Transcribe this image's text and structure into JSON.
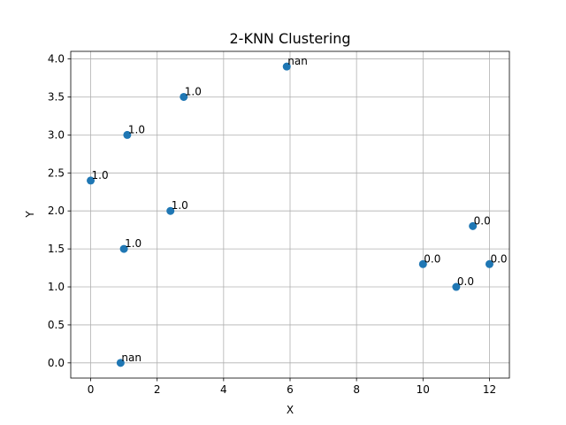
{
  "chart_data": {
    "type": "scatter",
    "title": "2-KNN Clustering",
    "xlabel": "X",
    "ylabel": "Y",
    "xlim": [
      -0.6,
      12.6
    ],
    "ylim": [
      -0.2,
      4.1
    ],
    "xticks": [
      0,
      2,
      4,
      6,
      8,
      10,
      12
    ],
    "xtick_labels": [
      "0",
      "2",
      "4",
      "6",
      "8",
      "10",
      "12"
    ],
    "yticks": [
      0.0,
      0.5,
      1.0,
      1.5,
      2.0,
      2.5,
      3.0,
      3.5,
      4.0
    ],
    "ytick_labels": [
      "0.0",
      "0.5",
      "1.0",
      "1.5",
      "2.0",
      "2.5",
      "3.0",
      "3.5",
      "4.0"
    ],
    "grid": true,
    "marker_color": "#1f77b4",
    "points": [
      {
        "x": 0.9,
        "y": 0.0,
        "label": "nan"
      },
      {
        "x": 1.0,
        "y": 1.5,
        "label": "1.0"
      },
      {
        "x": 0.0,
        "y": 2.4,
        "label": "1.0"
      },
      {
        "x": 1.1,
        "y": 3.0,
        "label": "1.0"
      },
      {
        "x": 2.8,
        "y": 3.5,
        "label": "1.0"
      },
      {
        "x": 2.4,
        "y": 2.0,
        "label": "1.0"
      },
      {
        "x": 5.9,
        "y": 3.9,
        "label": "nan"
      },
      {
        "x": 10.0,
        "y": 1.3,
        "label": "0.0"
      },
      {
        "x": 11.0,
        "y": 1.0,
        "label": "0.0"
      },
      {
        "x": 11.5,
        "y": 1.8,
        "label": "0.0"
      },
      {
        "x": 12.0,
        "y": 1.3,
        "label": "0.0"
      }
    ]
  }
}
